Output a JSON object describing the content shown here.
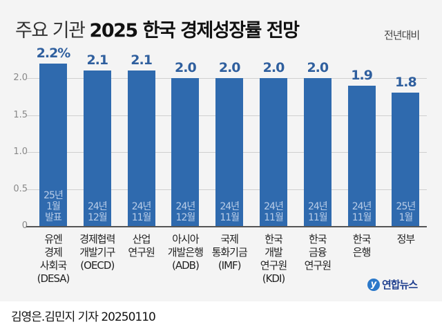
{
  "header": {
    "title_light": "주요 기관",
    "title_bold": "2025 한국 경제성장률 전망",
    "unit_note": "전년대비"
  },
  "chart_data": {
    "type": "bar",
    "title": "주요 기관 2025 한국 경제성장률 전망",
    "subtitle": "전년대비",
    "xlabel": "",
    "ylabel": "",
    "ylim": [
      0,
      2.3
    ],
    "yticks": [
      "0",
      "0.5",
      "1.0",
      "1.5",
      "2.0"
    ],
    "grid": true,
    "categories": [
      "유엔 경제 사회국 (DESA)",
      "경제협력 개발기구 (OECD)",
      "산업 연구원",
      "아시아 개발은행 (ADB)",
      "국제 통화기금 (IMF)",
      "한국 개발 연구원 (KDI)",
      "한국 금융 연구원",
      "한국 은행",
      "정부"
    ],
    "values": [
      2.2,
      2.1,
      2.1,
      2.0,
      2.0,
      2.0,
      2.0,
      1.9,
      1.8
    ],
    "value_labels": [
      "2.2%",
      "2.1",
      "2.1",
      "2.0",
      "2.0",
      "2.0",
      "2.0",
      "1.9",
      "1.8"
    ],
    "date_annotations": [
      "25년 1월 발표",
      "24년 12월",
      "24년 11월",
      "24년 12월",
      "24년 11월",
      "24년 11월",
      "24년 11월",
      "24년 11월",
      "25년 1월"
    ],
    "bar_color": "#2f6aae"
  },
  "bars": [
    {
      "value": 2.2,
      "label": "2.2%",
      "date": [
        "25년",
        "1월",
        "발표"
      ],
      "cat": [
        "유엔",
        "경제",
        "사회국",
        "(DESA)"
      ]
    },
    {
      "value": 2.1,
      "label": "2.1",
      "date": [
        "24년",
        "12월"
      ],
      "cat": [
        "경제협력",
        "개발기구",
        "(OECD)"
      ]
    },
    {
      "value": 2.1,
      "label": "2.1",
      "date": [
        "24년",
        "11월"
      ],
      "cat": [
        "산업",
        "연구원"
      ]
    },
    {
      "value": 2.0,
      "label": "2.0",
      "date": [
        "24년",
        "12월"
      ],
      "cat": [
        "아시아",
        "개발은행",
        "(ADB)"
      ]
    },
    {
      "value": 2.0,
      "label": "2.0",
      "date": [
        "24년",
        "11월"
      ],
      "cat": [
        "국제",
        "통화기금",
        "(IMF)"
      ]
    },
    {
      "value": 2.0,
      "label": "2.0",
      "date": [
        "24년",
        "11월"
      ],
      "cat": [
        "한국",
        "개발",
        "연구원",
        "(KDI)"
      ]
    },
    {
      "value": 2.0,
      "label": "2.0",
      "date": [
        "24년",
        "11월"
      ],
      "cat": [
        "한국",
        "금융",
        "연구원"
      ]
    },
    {
      "value": 1.9,
      "label": "1.9",
      "date": [
        "24년",
        "11월"
      ],
      "cat": [
        "한국",
        "은행"
      ]
    },
    {
      "value": 1.8,
      "label": "1.8",
      "date": [
        "25년",
        "1월"
      ],
      "cat": [
        "정부"
      ]
    }
  ],
  "logo": {
    "mark": "y",
    "text": "연합뉴스"
  },
  "credit": "김영은.김민지 기자  20250110"
}
